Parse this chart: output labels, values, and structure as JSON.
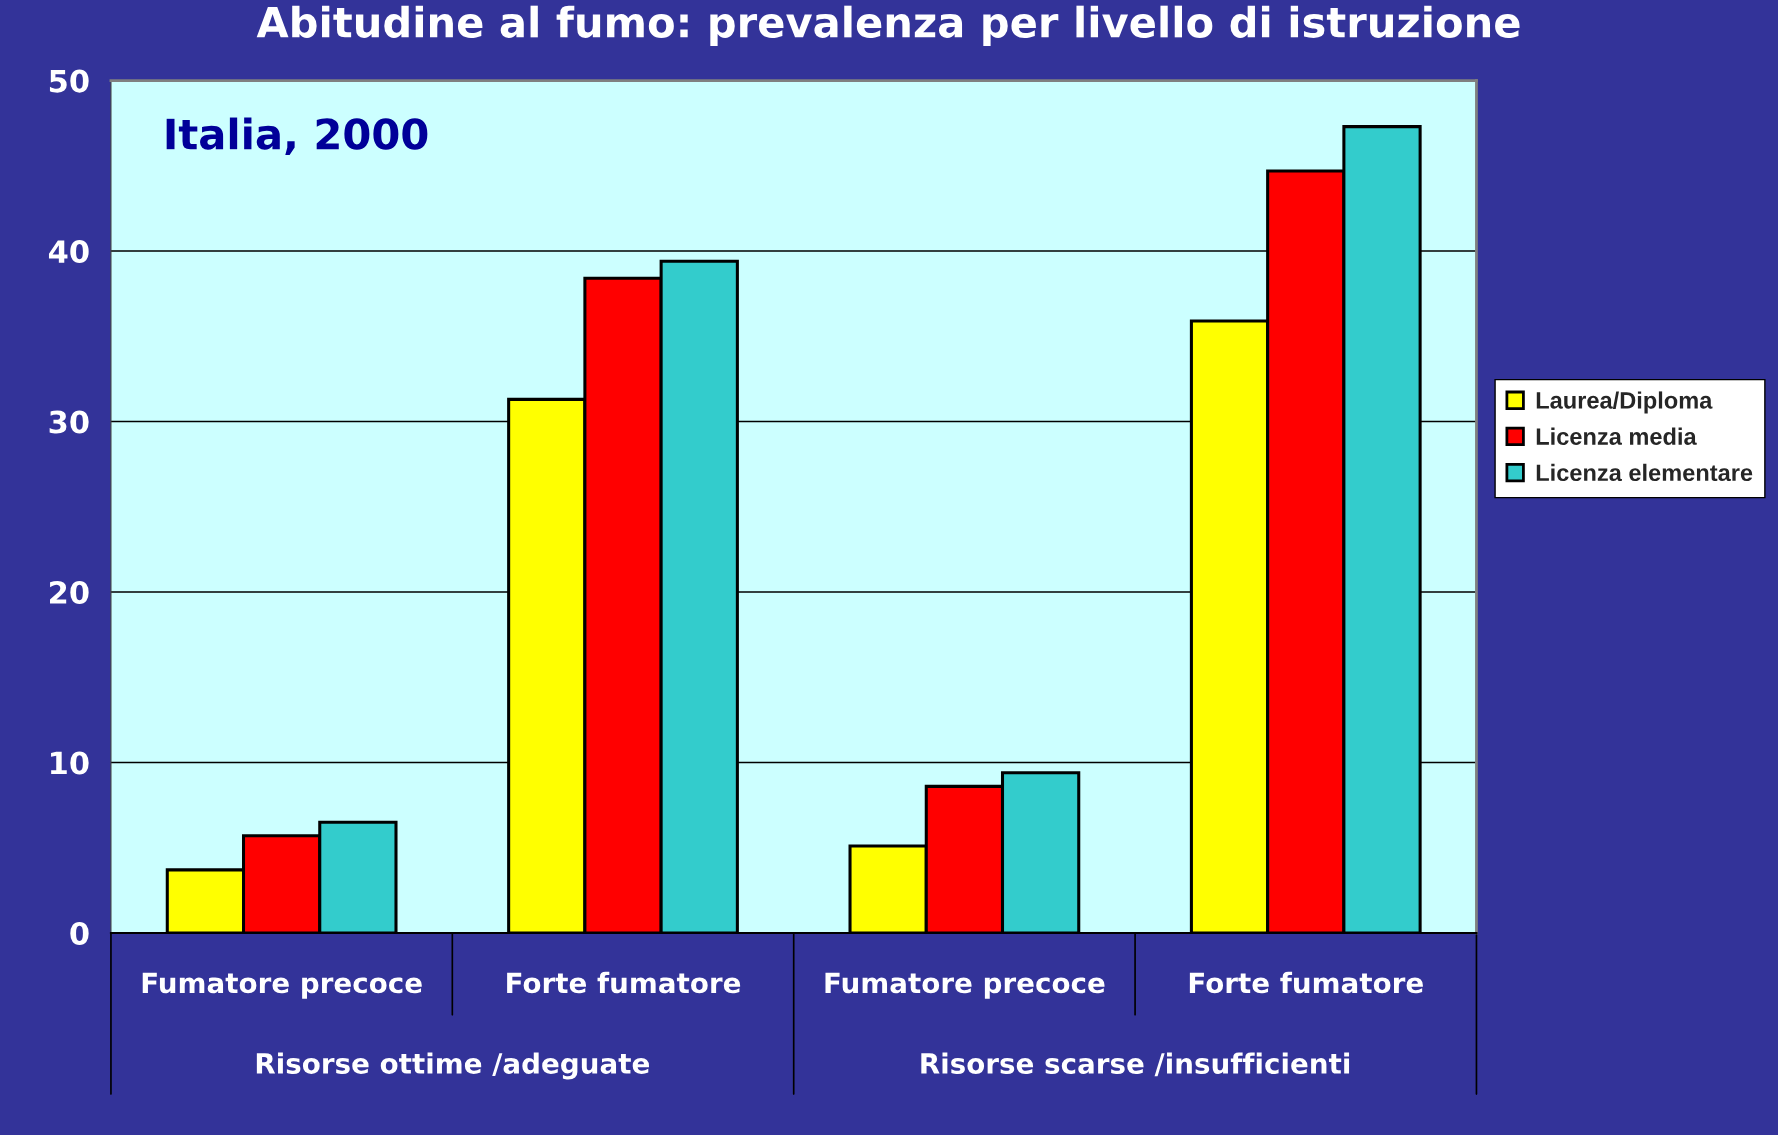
{
  "chart_data": {
    "type": "bar",
    "title": "Abitudine al fumo: prevalenza per livello di istruzione",
    "subtitle": "Italia, 2000",
    "categories": [
      "Fumatore precoce",
      "Forte fumatore",
      "Fumatore precoce",
      "Forte fumatore"
    ],
    "annotations": [
      "Risorse ottime /adeguate",
      "Risorse scarse /insufficienti"
    ],
    "series": [
      {
        "name": "Laurea/Diploma",
        "color": "#ffff00",
        "values": [
          3.7,
          31.3,
          5.1,
          35.9
        ]
      },
      {
        "name": "Licenza media",
        "color": "#ff0000",
        "values": [
          5.7,
          38.4,
          8.6,
          44.7
        ]
      },
      {
        "name": "Licenza elementare",
        "color": "#33cccc",
        "values": [
          6.5,
          39.4,
          9.4,
          47.3
        ]
      }
    ],
    "ylim": [
      0,
      50
    ],
    "yticks": [
      0,
      10,
      20,
      30,
      40,
      50
    ],
    "grid": "y",
    "legend": "right"
  }
}
